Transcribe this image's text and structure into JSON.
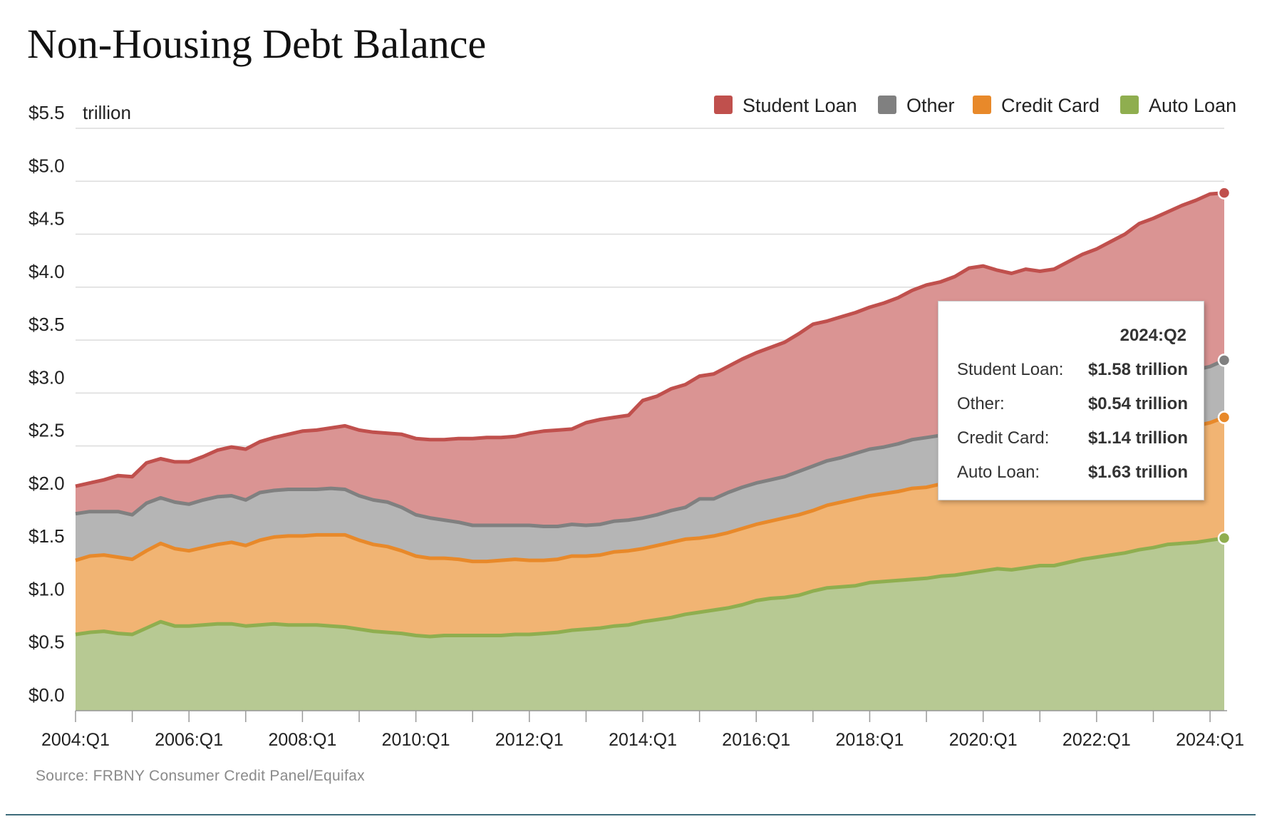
{
  "title": "Non-Housing Debt Balance",
  "source": "Source: FRBNY Consumer Credit Panel/Equifax",
  "tooltip": {
    "date": "2024:Q2",
    "rows": [
      {
        "label": "Student Loan:",
        "value": "$1.58 trillion"
      },
      {
        "label": "Other:",
        "value": "$0.54 trillion"
      },
      {
        "label": "Credit Card:",
        "value": "$1.14 trillion"
      },
      {
        "label": "Auto Loan:",
        "value": "$1.63 trillion"
      }
    ]
  },
  "chart_data": {
    "type": "area",
    "stacked": true,
    "title": "Non-Housing Debt Balance",
    "ylabel": "trillion",
    "ylim": [
      0,
      5.5
    ],
    "yticks": [
      {
        "value": 0.0,
        "label": "$0.0"
      },
      {
        "value": 0.5,
        "label": "$0.5"
      },
      {
        "value": 1.0,
        "label": "$1.0"
      },
      {
        "value": 1.5,
        "label": "$1.5"
      },
      {
        "value": 2.0,
        "label": "$2.0"
      },
      {
        "value": 2.5,
        "label": "$2.5"
      },
      {
        "value": 3.0,
        "label": "$3.0"
      },
      {
        "value": 3.5,
        "label": "$3.5"
      },
      {
        "value": 4.0,
        "label": "$4.0"
      },
      {
        "value": 4.5,
        "label": "$4.5"
      },
      {
        "value": 5.0,
        "label": "$5.0"
      },
      {
        "value": 5.5,
        "label": "$5.5"
      }
    ],
    "xticks": [
      "2004:Q1",
      "2006:Q1",
      "2008:Q1",
      "2010:Q1",
      "2012:Q1",
      "2014:Q1",
      "2016:Q1",
      "2018:Q1",
      "2020:Q1",
      "2022:Q1",
      "2024:Q1"
    ],
    "legend_position": "top-right",
    "grid": true,
    "x": [
      "2004:Q1",
      "2004:Q2",
      "2004:Q3",
      "2004:Q4",
      "2005:Q1",
      "2005:Q2",
      "2005:Q3",
      "2005:Q4",
      "2006:Q1",
      "2006:Q2",
      "2006:Q3",
      "2006:Q4",
      "2007:Q1",
      "2007:Q2",
      "2007:Q3",
      "2007:Q4",
      "2008:Q1",
      "2008:Q2",
      "2008:Q3",
      "2008:Q4",
      "2009:Q1",
      "2009:Q2",
      "2009:Q3",
      "2009:Q4",
      "2010:Q1",
      "2010:Q2",
      "2010:Q3",
      "2010:Q4",
      "2011:Q1",
      "2011:Q2",
      "2011:Q3",
      "2011:Q4",
      "2012:Q1",
      "2012:Q2",
      "2012:Q3",
      "2012:Q4",
      "2013:Q1",
      "2013:Q2",
      "2013:Q3",
      "2013:Q4",
      "2014:Q1",
      "2014:Q2",
      "2014:Q3",
      "2014:Q4",
      "2015:Q1",
      "2015:Q2",
      "2015:Q3",
      "2015:Q4",
      "2016:Q1",
      "2016:Q2",
      "2016:Q3",
      "2016:Q4",
      "2017:Q1",
      "2017:Q2",
      "2017:Q3",
      "2017:Q4",
      "2018:Q1",
      "2018:Q2",
      "2018:Q3",
      "2018:Q4",
      "2019:Q1",
      "2019:Q2",
      "2019:Q3",
      "2019:Q4",
      "2020:Q1",
      "2020:Q2",
      "2020:Q3",
      "2020:Q4",
      "2021:Q1",
      "2021:Q2",
      "2021:Q3",
      "2021:Q4",
      "2022:Q1",
      "2022:Q2",
      "2022:Q3",
      "2022:Q4",
      "2023:Q1",
      "2023:Q2",
      "2023:Q3",
      "2023:Q4",
      "2024:Q1",
      "2024:Q2"
    ],
    "series": [
      {
        "name": "Auto Loan",
        "color": "#8fae4f",
        "fill": "#b7c993",
        "values": [
          0.72,
          0.74,
          0.75,
          0.73,
          0.72,
          0.78,
          0.84,
          0.8,
          0.8,
          0.81,
          0.82,
          0.82,
          0.8,
          0.81,
          0.82,
          0.81,
          0.81,
          0.81,
          0.8,
          0.79,
          0.77,
          0.75,
          0.74,
          0.73,
          0.71,
          0.7,
          0.71,
          0.71,
          0.71,
          0.71,
          0.71,
          0.72,
          0.72,
          0.73,
          0.74,
          0.76,
          0.77,
          0.78,
          0.8,
          0.81,
          0.84,
          0.86,
          0.88,
          0.91,
          0.93,
          0.95,
          0.97,
          1.0,
          1.04,
          1.06,
          1.07,
          1.09,
          1.13,
          1.16,
          1.17,
          1.18,
          1.21,
          1.22,
          1.23,
          1.24,
          1.25,
          1.27,
          1.28,
          1.3,
          1.32,
          1.34,
          1.33,
          1.35,
          1.37,
          1.37,
          1.4,
          1.43,
          1.45,
          1.47,
          1.49,
          1.52,
          1.54,
          1.57,
          1.58,
          1.59,
          1.61,
          1.63
        ]
      },
      {
        "name": "Credit Card",
        "color": "#e8892a",
        "fill": "#f1b473",
        "values": [
          0.7,
          0.72,
          0.72,
          0.72,
          0.71,
          0.73,
          0.74,
          0.73,
          0.71,
          0.73,
          0.75,
          0.77,
          0.76,
          0.8,
          0.82,
          0.84,
          0.84,
          0.85,
          0.86,
          0.87,
          0.84,
          0.82,
          0.81,
          0.78,
          0.75,
          0.74,
          0.73,
          0.72,
          0.7,
          0.7,
          0.71,
          0.71,
          0.7,
          0.69,
          0.69,
          0.7,
          0.69,
          0.69,
          0.7,
          0.7,
          0.69,
          0.7,
          0.71,
          0.71,
          0.7,
          0.7,
          0.71,
          0.72,
          0.72,
          0.73,
          0.75,
          0.76,
          0.76,
          0.78,
          0.8,
          0.82,
          0.82,
          0.83,
          0.84,
          0.86,
          0.86,
          0.87,
          0.88,
          0.9,
          0.89,
          0.82,
          0.82,
          0.82,
          0.77,
          0.78,
          0.81,
          0.83,
          0.84,
          0.89,
          0.92,
          0.97,
          0.99,
          1.03,
          1.06,
          1.1,
          1.11,
          1.14
        ]
      },
      {
        "name": "Other",
        "color": "#808080",
        "fill": "#b5b5b5",
        "values": [
          0.44,
          0.42,
          0.41,
          0.43,
          0.42,
          0.45,
          0.43,
          0.44,
          0.44,
          0.45,
          0.45,
          0.44,
          0.43,
          0.45,
          0.44,
          0.44,
          0.44,
          0.43,
          0.44,
          0.43,
          0.42,
          0.42,
          0.42,
          0.41,
          0.39,
          0.38,
          0.36,
          0.35,
          0.34,
          0.34,
          0.33,
          0.32,
          0.33,
          0.32,
          0.31,
          0.3,
          0.29,
          0.29,
          0.29,
          0.29,
          0.29,
          0.29,
          0.3,
          0.3,
          0.37,
          0.35,
          0.38,
          0.39,
          0.39,
          0.39,
          0.39,
          0.41,
          0.42,
          0.42,
          0.42,
          0.43,
          0.44,
          0.44,
          0.45,
          0.46,
          0.47,
          0.46,
          0.46,
          0.47,
          0.47,
          0.46,
          0.45,
          0.45,
          0.45,
          0.45,
          0.46,
          0.46,
          0.47,
          0.48,
          0.49,
          0.5,
          0.5,
          0.51,
          0.52,
          0.53,
          0.53,
          0.54
        ]
      },
      {
        "name": "Student Loan",
        "color": "#c0504d",
        "fill": "#da9493",
        "values": [
          0.26,
          0.27,
          0.3,
          0.34,
          0.36,
          0.38,
          0.37,
          0.38,
          0.4,
          0.41,
          0.44,
          0.46,
          0.48,
          0.48,
          0.5,
          0.52,
          0.55,
          0.56,
          0.57,
          0.6,
          0.62,
          0.64,
          0.65,
          0.69,
          0.72,
          0.74,
          0.76,
          0.79,
          0.82,
          0.83,
          0.83,
          0.84,
          0.87,
          0.9,
          0.91,
          0.9,
          0.97,
          0.99,
          0.98,
          0.99,
          1.11,
          1.12,
          1.15,
          1.16,
          1.16,
          1.18,
          1.19,
          1.21,
          1.23,
          1.25,
          1.27,
          1.3,
          1.34,
          1.32,
          1.33,
          1.33,
          1.34,
          1.36,
          1.38,
          1.41,
          1.44,
          1.45,
          1.48,
          1.51,
          1.52,
          1.54,
          1.53,
          1.55,
          1.56,
          1.57,
          1.57,
          1.59,
          1.6,
          1.59,
          1.6,
          1.61,
          1.62,
          1.6,
          1.61,
          1.6,
          1.63,
          1.58
        ]
      }
    ]
  }
}
